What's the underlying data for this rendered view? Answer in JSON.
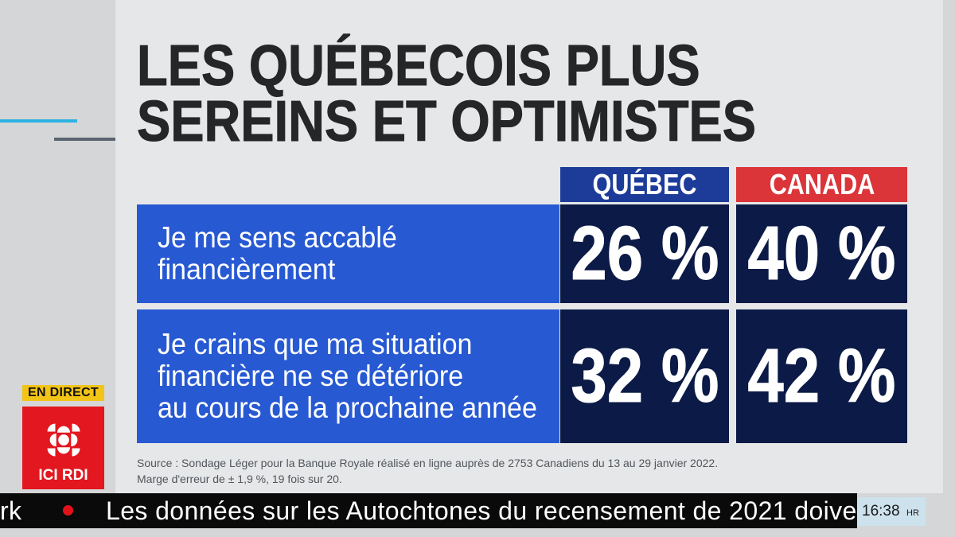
{
  "chart_data": {
    "type": "table",
    "title": [
      "LES QUÉBECOIS PLUS",
      "SEREINS ET OPTIMISTES"
    ],
    "columns": [
      "QUÉBEC",
      "CANADA"
    ],
    "rows": [
      {
        "label": [
          "Je me sens accablé",
          "financièrement"
        ],
        "values": [
          "26 %",
          "40 %"
        ]
      },
      {
        "label": [
          "Je crains que ma situation",
          "financière ne se détériore",
          "au cours de la prochaine année"
        ],
        "values": [
          "32 %",
          "42 %"
        ]
      }
    ],
    "source": [
      "Source : Sondage Léger pour la Banque Royale réalisé en ligne auprès de 2753 Canadiens du 13 au 29 janvier 2022.",
      "Marge d'erreur de ± 1,9 %, 19 fois sur 20."
    ]
  },
  "broadcast": {
    "live_badge": "EN DIRECT",
    "channel_name": "ICI RDI",
    "channel_logo_icon": "cbc-gem-icon"
  },
  "ticker": {
    "previous_fragment": "rk",
    "separator_icon": "red-dot-icon",
    "headline": "Les données sur les Autochtones du recensement de 2021 doive"
  },
  "clock": {
    "time": "16:38",
    "suffix": "HR"
  },
  "colors": {
    "rail": "#d5d6d7",
    "panel": "#e6e7e8",
    "title": "#252627",
    "quebec-header": "#1d3c99",
    "canada-header": "#db3439",
    "label-blue": "#2759d2",
    "value-navy": "#0b1a46",
    "source-text": "#50565c",
    "accent-cyan": "#2bb4e3",
    "accent-gray": "#5a6571",
    "live-yellow": "#f2c417",
    "channel-red": "#e2171f",
    "ticker-black": "#0a0a0a",
    "ticker-dot": "#e1121b",
    "clock-bg": "#cde2ec",
    "clock-text": "#1b1b1b"
  }
}
